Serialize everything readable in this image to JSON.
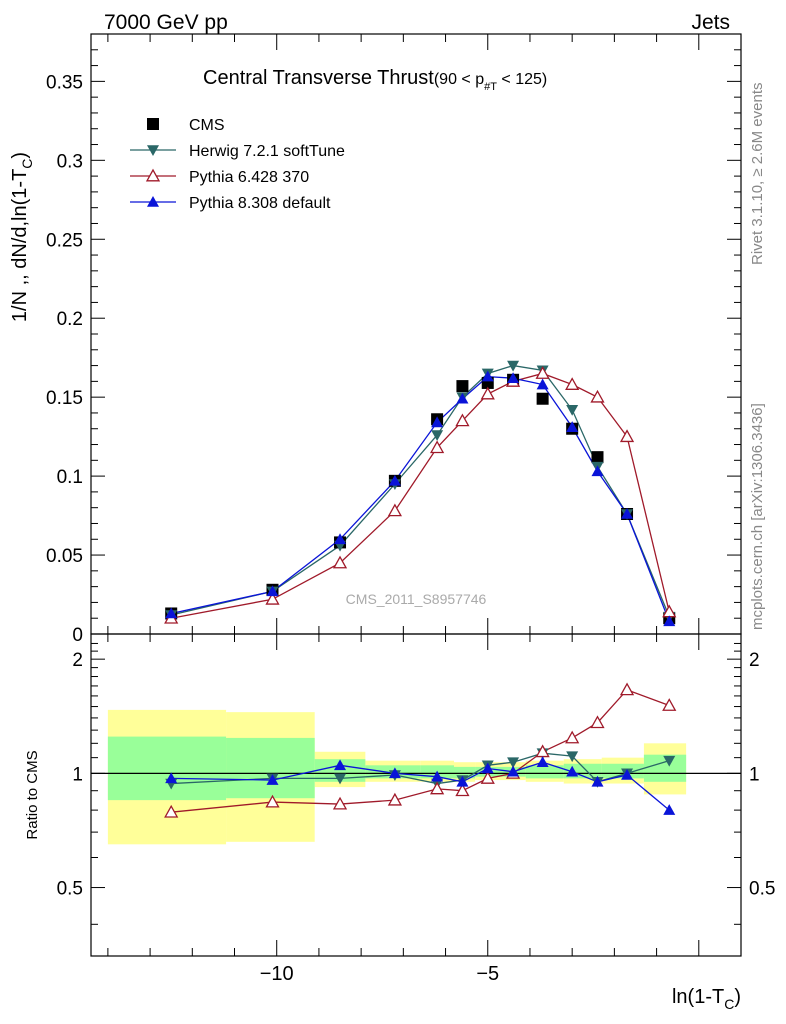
{
  "header": {
    "left_label": "7000 GeV pp",
    "right_label": "Jets"
  },
  "side_labels": {
    "rivet": "Rivet 3.1.10, ≥ 2.6M events",
    "mcplots": "mcplots.cern.ch [arXiv:1306.3436]"
  },
  "watermark": "CMS_2011_S8957746",
  "chart_data": [
    {
      "type": "line",
      "title": "Central Transverse Thrust",
      "subtitle": "(90 < p",
      "subtitle_sub": "#T",
      "subtitle_end": " < 125)",
      "ylabel": "1/N ,, dN/d,ln(1-T",
      "ylabel_sub": "C",
      "ylabel_end": ")",
      "xlim": [
        -14.4,
        1.0
      ],
      "ylim": [
        0,
        0.38
      ],
      "x_ticks": [
        -10,
        -5
      ],
      "y_ticks": [
        0,
        0.05,
        0.1,
        0.15,
        0.2,
        0.25,
        0.3,
        0.35
      ],
      "y_tick_labels": [
        "0",
        "0.05",
        "0.1",
        "0.15",
        "0.2",
        "0.25",
        "0.3",
        "0.35"
      ],
      "legend_position": "top-left",
      "series": [
        {
          "name": "CMS",
          "color": "#000000",
          "marker": "square",
          "x": [
            -12.5,
            -10.1,
            -8.5,
            -7.2,
            -6.2,
            -5.6,
            -5.0,
            -4.4,
            -3.7,
            -3.0,
            -2.4,
            -1.7,
            -0.7
          ],
          "y": [
            0.013,
            0.028,
            0.058,
            0.097,
            0.136,
            0.157,
            0.159,
            0.161,
            0.149,
            0.13,
            0.112,
            0.076,
            0.01
          ]
        },
        {
          "name": "Herwig 7.2.1 softTune",
          "color": "#2a6767",
          "marker": "triangle-down",
          "x": [
            -12.5,
            -10.1,
            -8.5,
            -7.2,
            -6.2,
            -5.6,
            -5.0,
            -4.4,
            -3.7,
            -3.0,
            -2.4,
            -1.7,
            -0.7
          ],
          "y": [
            0.012,
            0.027,
            0.056,
            0.095,
            0.126,
            0.15,
            0.165,
            0.17,
            0.167,
            0.142,
            0.106,
            0.076,
            0.011
          ]
        },
        {
          "name": "Pythia 6.428 370",
          "color": "#a01a2a",
          "marker": "triangle-up-open",
          "x": [
            -12.5,
            -10.1,
            -8.5,
            -7.2,
            -6.2,
            -5.6,
            -5.0,
            -4.4,
            -3.7,
            -3.0,
            -2.4,
            -1.7,
            -0.7
          ],
          "y": [
            0.01,
            0.022,
            0.045,
            0.078,
            0.118,
            0.135,
            0.152,
            0.16,
            0.165,
            0.158,
            0.15,
            0.125,
            0.014
          ]
        },
        {
          "name": "Pythia 8.308 default",
          "color": "#0a14d8",
          "marker": "triangle-up",
          "x": [
            -12.5,
            -10.1,
            -8.5,
            -7.2,
            -6.2,
            -5.6,
            -5.0,
            -4.4,
            -3.7,
            -3.0,
            -2.4,
            -1.7,
            -0.7
          ],
          "y": [
            0.013,
            0.027,
            0.06,
            0.097,
            0.134,
            0.149,
            0.163,
            0.162,
            0.158,
            0.131,
            0.103,
            0.076,
            0.008
          ]
        }
      ]
    },
    {
      "type": "line",
      "title": "",
      "xlabel": "ln(1-T",
      "xlabel_sub": "C",
      "xlabel_end": ")",
      "ylabel": "Ratio to CMS",
      "xlim": [
        -14.4,
        1.0
      ],
      "ylim": [
        0.33,
        2.33
      ],
      "x_ticks": [
        -10,
        -5
      ],
      "x_tick_labels": [
        "−10",
        "−5"
      ],
      "y_ticks": [
        0.5,
        1,
        2
      ],
      "y_tick_labels": [
        "0.5",
        "1",
        "2"
      ],
      "reference_line": 1,
      "bands": [
        {
          "x0": -14.0,
          "x1": -11.2,
          "yellow": [
            0.65,
            1.47
          ],
          "green": [
            0.85,
            1.25
          ]
        },
        {
          "x0": -11.2,
          "x1": -9.1,
          "yellow": [
            0.66,
            1.45
          ],
          "green": [
            0.86,
            1.24
          ]
        },
        {
          "x0": -9.1,
          "x1": -7.9,
          "yellow": [
            0.92,
            1.14
          ],
          "green": [
            0.95,
            1.09
          ]
        },
        {
          "x0": -7.9,
          "x1": -6.6,
          "yellow": [
            0.95,
            1.08
          ],
          "green": [
            0.97,
            1.05
          ]
        },
        {
          "x0": -6.6,
          "x1": -5.8,
          "yellow": [
            0.95,
            1.08
          ],
          "green": [
            0.97,
            1.05
          ]
        },
        {
          "x0": -5.8,
          "x1": -5.3,
          "yellow": [
            0.95,
            1.07
          ],
          "green": [
            0.97,
            1.04
          ]
        },
        {
          "x0": -5.3,
          "x1": -4.1,
          "yellow": [
            0.96,
            1.07
          ],
          "green": [
            0.98,
            1.04
          ]
        },
        {
          "x0": -4.1,
          "x1": -3.2,
          "yellow": [
            0.95,
            1.08
          ],
          "green": [
            0.97,
            1.05
          ]
        },
        {
          "x0": -3.2,
          "x1": -2.3,
          "yellow": [
            0.94,
            1.09
          ],
          "green": [
            0.97,
            1.06
          ]
        },
        {
          "x0": -2.3,
          "x1": -1.3,
          "yellow": [
            0.94,
            1.1
          ],
          "green": [
            0.97,
            1.06
          ]
        },
        {
          "x0": -1.3,
          "x1": -0.3,
          "yellow": [
            0.88,
            1.2
          ],
          "green": [
            0.95,
            1.12
          ]
        }
      ],
      "series": [
        {
          "name": "Herwig 7.2.1 softTune",
          "color": "#2a6767",
          "marker": "triangle-down",
          "x": [
            -12.5,
            -10.1,
            -8.5,
            -7.2,
            -6.2,
            -5.6,
            -5.0,
            -4.4,
            -3.7,
            -3.0,
            -2.4,
            -1.7,
            -0.7
          ],
          "y": [
            0.94,
            0.97,
            0.97,
            0.99,
            0.94,
            0.96,
            1.05,
            1.07,
            1.13,
            1.11,
            0.95,
            1.0,
            1.08
          ]
        },
        {
          "name": "Pythia 6.428 370",
          "color": "#a01a2a",
          "marker": "triangle-up-open",
          "x": [
            -12.5,
            -10.1,
            -8.5,
            -7.2,
            -6.2,
            -5.6,
            -5.0,
            -4.4,
            -3.7,
            -3.0,
            -2.4,
            -1.7,
            -0.7
          ],
          "y": [
            0.79,
            0.84,
            0.83,
            0.85,
            0.91,
            0.9,
            0.97,
            1.0,
            1.14,
            1.24,
            1.36,
            1.66,
            1.51
          ]
        },
        {
          "name": "Pythia 8.308 default",
          "color": "#0a14d8",
          "marker": "triangle-up",
          "x": [
            -12.5,
            -10.1,
            -8.5,
            -7.2,
            -6.2,
            -5.6,
            -5.0,
            -4.4,
            -3.7,
            -3.0,
            -2.4,
            -1.7,
            -0.7
          ],
          "y": [
            0.97,
            0.96,
            1.05,
            1.0,
            0.98,
            0.95,
            1.03,
            1.01,
            1.07,
            1.01,
            0.95,
            0.99,
            0.8
          ]
        }
      ]
    }
  ]
}
